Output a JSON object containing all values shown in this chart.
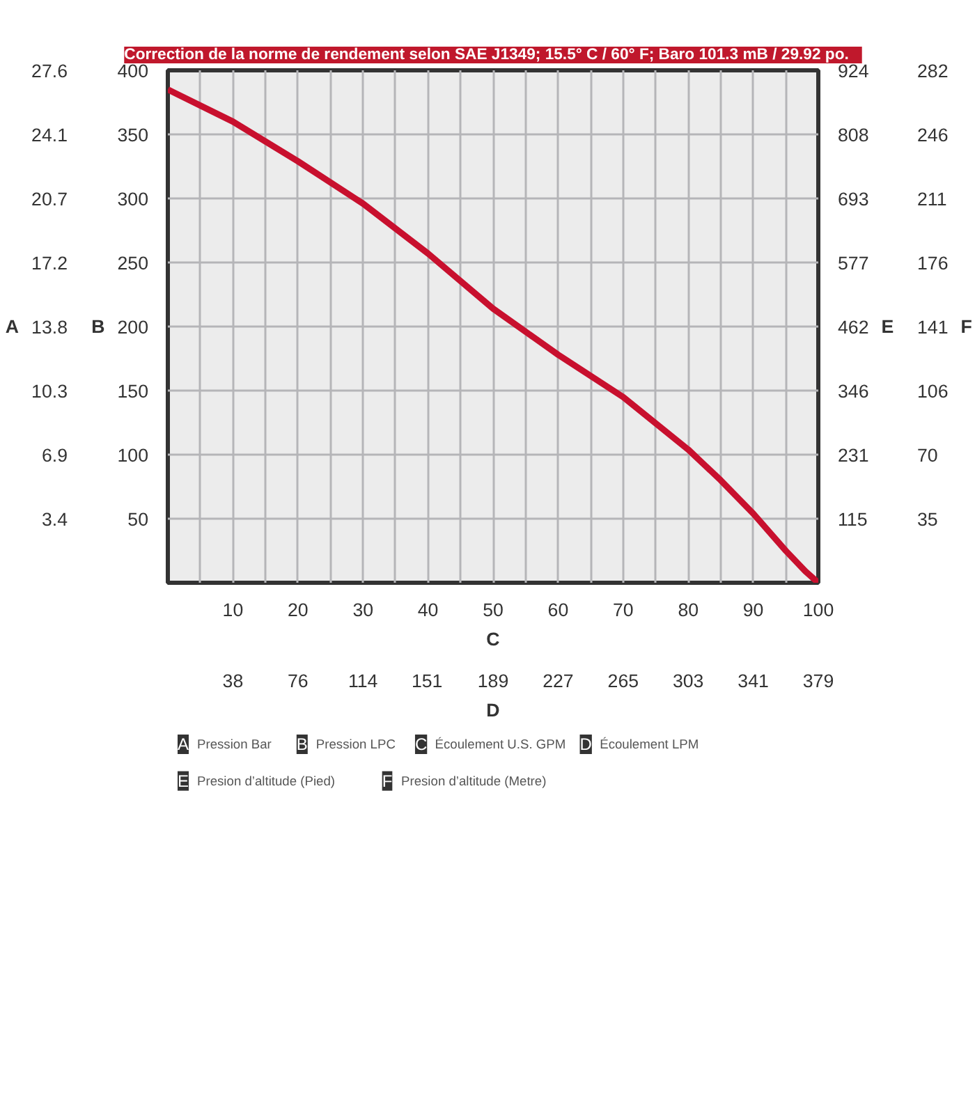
{
  "chart_data": {
    "type": "line",
    "title": "Correction de la norme de rendement selon SAE J1349;  15.5° C  / 60° F;  Baro 101.3 mB / 29.92 po.",
    "xlabel": "C",
    "x2label": "D",
    "ylabel": "B",
    "y2label": "A",
    "y3label": "E",
    "x": [
      0,
      10,
      20,
      30,
      40,
      50,
      60,
      70,
      80,
      85,
      90,
      95,
      98,
      100
    ],
    "series": [
      {
        "color": "#c8102e",
        "values": [
          385,
          360,
          329,
          296,
          257,
          214,
          178,
          145,
          104,
          80,
          54,
          25,
          9,
          0
        ]
      }
    ],
    "xlim": [
      0,
      100
    ],
    "xticks": [
      {
        "value": 5,
        "label": null
      },
      10,
      {
        "value": 15,
        "label": null
      },
      20,
      {
        "value": 25,
        "label": null
      },
      30,
      {
        "value": 35,
        "label": null
      },
      40,
      {
        "value": 45,
        "label": null
      },
      50,
      {
        "value": 55,
        "label": null
      },
      60,
      {
        "value": 65,
        "label": null
      },
      70,
      {
        "value": 75,
        "label": null
      },
      80,
      {
        "value": 85,
        "label": null
      },
      90,
      {
        "value": 95,
        "label": null
      },
      100
    ],
    "x2lim": [
      0,
      379
    ],
    "x2ticks": [
      {
        "value": 37.9,
        "label": "38"
      },
      {
        "value": 75.8,
        "label": "76"
      },
      {
        "value": 113.7,
        "label": "114"
      },
      151,
      {
        "value": 189.5,
        "label": "189"
      },
      {
        "value": 227.4,
        "label": "227"
      },
      {
        "value": 265.3,
        "label": "265"
      },
      {
        "value": 303.2,
        "label": "303"
      },
      {
        "value": 341.1,
        "label": "341"
      },
      379
    ],
    "ylim": [
      0,
      400
    ],
    "yticks": [
      50,
      100,
      150,
      200,
      250,
      300,
      350,
      400
    ],
    "y2lim": [
      0,
      27.6
    ],
    "y2ticks": [
      {
        "value": 3.45,
        "label": "3.4"
      },
      6.9,
      {
        "value": 10.35,
        "label": "10.3"
      },
      13.8,
      {
        "value": 17.25,
        "label": "17.2"
      },
      20.7,
      {
        "value": 24.15,
        "label": "24.1"
      },
      27.6
    ],
    "y3lim": [
      0,
      924
    ],
    "y3ticks": [
      {
        "value": 115.5,
        "label": "115"
      },
      231,
      {
        "value": 346.5,
        "label": "346"
      },
      462,
      {
        "value": 577.5,
        "label": "577"
      },
      693,
      {
        "value": 808.5,
        "label": "808"
      },
      924
    ],
    "grid": true,
    "marker": "none",
    "line_style": "solid",
    "annotations": [
      "F",
      "35",
      "70",
      "106",
      "141",
      "176",
      "211",
      "246",
      "282",
      "A",
      "Pression Bar",
      "B",
      "Pression LPC",
      "C",
      "Écoulement U.S. GPM",
      "D",
      "Écoulement LPM",
      "E",
      "Presion d’altitude (Pied)",
      "F",
      "Presion d’altitude (Metre)"
    ]
  }
}
